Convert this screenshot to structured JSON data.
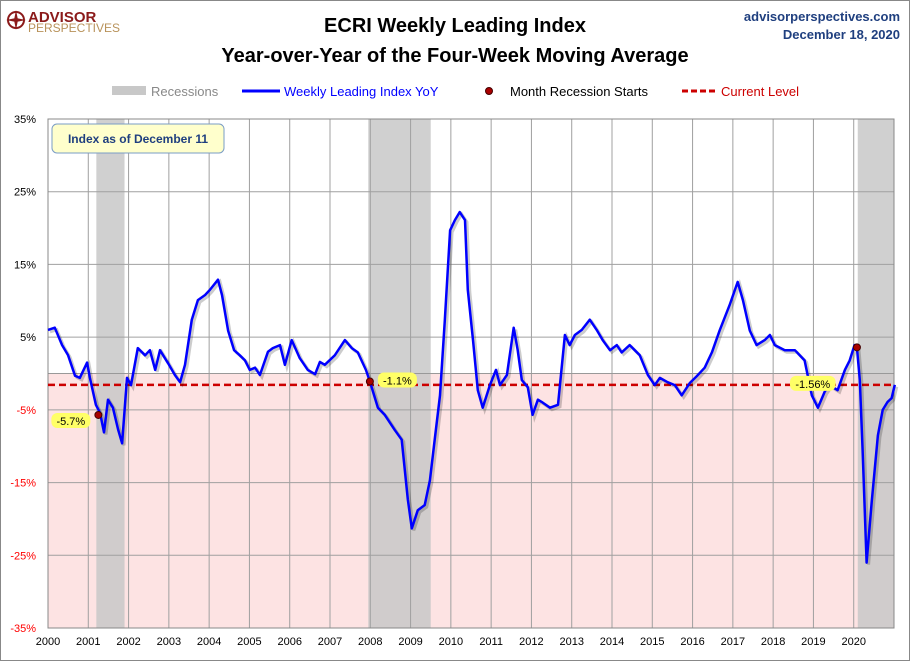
{
  "header": {
    "logo_text_1": "ADVISOR",
    "logo_text_2": "PERSPECTIVES",
    "title_line1": "ECRI Weekly Leading Index",
    "title_line2": "Year-over-Year of the Four-Week Moving Average",
    "site": "advisorperspectives.com",
    "date": "December 18, 2020"
  },
  "chart_data": {
    "type": "line",
    "title": "ECRI Weekly Leading Index Year-over-Year of the Four-Week Moving Average",
    "xlabel": "",
    "ylabel": "",
    "xlim": [
      2000,
      2021
    ],
    "ylim": [
      -35,
      35
    ],
    "grid": true,
    "legend_position": "top",
    "x_ticks": [
      "2000",
      "2001",
      "2002",
      "2003",
      "2004",
      "2005",
      "2006",
      "2007",
      "2008",
      "2009",
      "2010",
      "2011",
      "2012",
      "2013",
      "2014",
      "2015",
      "2016",
      "2017",
      "2018",
      "2019",
      "2020"
    ],
    "y_ticks": [
      35,
      25,
      15,
      5,
      -5,
      -15,
      -25,
      -35
    ],
    "y_tick_labels": [
      "35%",
      "25%",
      "15%",
      "5%",
      "-5%",
      "-15%",
      "-25%",
      "-35%"
    ],
    "legend": [
      "Recessions",
      "Weekly Leading Index YoY",
      "Month Recession Starts",
      "Current Level"
    ],
    "annotation_box": "Index as of December 11",
    "colors": {
      "series": "#0000ff",
      "recession": "#c8c8c8",
      "current": "#cc0000",
      "marker": "#aa0000",
      "negative_zone": "#fde3e3",
      "label_bg": "#ffff66",
      "box_bg": "#ffffcc"
    },
    "current_level": -1.56,
    "recessions": [
      [
        2001.2,
        2001.9
      ],
      [
        2007.95,
        2009.5
      ],
      [
        2020.1,
        2021.02
      ]
    ],
    "recession_starts": [
      {
        "x": 2001.25,
        "y": -5.7,
        "label": "-5.7%"
      },
      {
        "x": 2007.99,
        "y": -1.1,
        "label": "-1.1%"
      },
      {
        "x": 2020.08,
        "y": 3.6,
        "label": ""
      }
    ],
    "current_label": "-1.56%",
    "series": [
      {
        "name": "Weekly Leading Index YoY",
        "points": [
          [
            2000.0,
            6.0
          ],
          [
            2000.17,
            6.3
          ],
          [
            2000.35,
            3.9
          ],
          [
            2000.5,
            2.5
          ],
          [
            2000.67,
            -0.3
          ],
          [
            2000.79,
            -0.6
          ],
          [
            2000.97,
            1.5
          ],
          [
            2001.04,
            -0.6
          ],
          [
            2001.19,
            -4.3
          ],
          [
            2001.29,
            -5.4
          ],
          [
            2001.39,
            -8.1
          ],
          [
            2001.49,
            -3.6
          ],
          [
            2001.61,
            -4.7
          ],
          [
            2001.74,
            -7.7
          ],
          [
            2001.84,
            -9.6
          ],
          [
            2001.96,
            -0.6
          ],
          [
            2002.06,
            -1.6
          ],
          [
            2002.23,
            3.5
          ],
          [
            2002.41,
            2.5
          ],
          [
            2002.53,
            3.2
          ],
          [
            2002.66,
            0.5
          ],
          [
            2002.78,
            3.2
          ],
          [
            2002.98,
            1.4
          ],
          [
            2003.15,
            -0.2
          ],
          [
            2003.28,
            -1.2
          ],
          [
            2003.4,
            1.2
          ],
          [
            2003.57,
            7.4
          ],
          [
            2003.72,
            10.1
          ],
          [
            2003.9,
            10.8
          ],
          [
            2004.02,
            11.5
          ],
          [
            2004.22,
            12.9
          ],
          [
            2004.32,
            10.8
          ],
          [
            2004.47,
            5.9
          ],
          [
            2004.62,
            3.2
          ],
          [
            2004.76,
            2.5
          ],
          [
            2004.89,
            1.8
          ],
          [
            2005.01,
            0.5
          ],
          [
            2005.14,
            0.8
          ],
          [
            2005.26,
            -0.2
          ],
          [
            2005.46,
            3.0
          ],
          [
            2005.58,
            3.5
          ],
          [
            2005.76,
            3.9
          ],
          [
            2005.88,
            1.2
          ],
          [
            2006.05,
            4.6
          ],
          [
            2006.25,
            2.1
          ],
          [
            2006.45,
            0.5
          ],
          [
            2006.63,
            -0.1
          ],
          [
            2006.75,
            1.6
          ],
          [
            2006.87,
            1.2
          ],
          [
            2007.12,
            2.5
          ],
          [
            2007.37,
            4.6
          ],
          [
            2007.54,
            3.5
          ],
          [
            2007.69,
            2.9
          ],
          [
            2007.89,
            0.5
          ],
          [
            2007.99,
            -1.1
          ],
          [
            2008.19,
            -4.7
          ],
          [
            2008.36,
            -5.7
          ],
          [
            2008.61,
            -7.8
          ],
          [
            2008.78,
            -9.1
          ],
          [
            2008.93,
            -17.3
          ],
          [
            2009.03,
            -21.3
          ],
          [
            2009.18,
            -18.8
          ],
          [
            2009.35,
            -18.1
          ],
          [
            2009.48,
            -14.7
          ],
          [
            2009.6,
            -9.1
          ],
          [
            2009.73,
            -3.0
          ],
          [
            2009.85,
            7.3
          ],
          [
            2009.98,
            19.7
          ],
          [
            2010.1,
            21.1
          ],
          [
            2010.22,
            22.2
          ],
          [
            2010.35,
            21.1
          ],
          [
            2010.42,
            11.5
          ],
          [
            2010.55,
            4.6
          ],
          [
            2010.67,
            -2.3
          ],
          [
            2010.79,
            -4.7
          ],
          [
            2010.97,
            -1.6
          ],
          [
            2011.12,
            0.5
          ],
          [
            2011.22,
            -1.6
          ],
          [
            2011.39,
            -0.2
          ],
          [
            2011.56,
            6.3
          ],
          [
            2011.66,
            3.2
          ],
          [
            2011.76,
            -0.9
          ],
          [
            2011.91,
            -1.9
          ],
          [
            2012.03,
            -5.7
          ],
          [
            2012.16,
            -3.6
          ],
          [
            2012.28,
            -4.0
          ],
          [
            2012.46,
            -4.7
          ],
          [
            2012.66,
            -4.3
          ],
          [
            2012.83,
            5.3
          ],
          [
            2012.95,
            3.9
          ],
          [
            2013.08,
            5.3
          ],
          [
            2013.25,
            6.0
          ],
          [
            2013.45,
            7.4
          ],
          [
            2013.62,
            6.0
          ],
          [
            2013.77,
            4.6
          ],
          [
            2013.95,
            3.2
          ],
          [
            2014.12,
            3.9
          ],
          [
            2014.24,
            2.9
          ],
          [
            2014.44,
            3.9
          ],
          [
            2014.69,
            2.5
          ],
          [
            2014.89,
            -0.2
          ],
          [
            2015.06,
            -1.6
          ],
          [
            2015.19,
            -0.6
          ],
          [
            2015.38,
            -1.2
          ],
          [
            2015.56,
            -1.6
          ],
          [
            2015.73,
            -3.0
          ],
          [
            2015.93,
            -1.3
          ],
          [
            2016.1,
            -0.4
          ],
          [
            2016.3,
            0.8
          ],
          [
            2016.48,
            2.9
          ],
          [
            2016.67,
            5.9
          ],
          [
            2016.92,
            9.4
          ],
          [
            2017.12,
            12.6
          ],
          [
            2017.25,
            10.1
          ],
          [
            2017.42,
            5.9
          ],
          [
            2017.59,
            3.9
          ],
          [
            2017.79,
            4.6
          ],
          [
            2017.92,
            5.3
          ],
          [
            2018.04,
            3.9
          ],
          [
            2018.29,
            3.2
          ],
          [
            2018.54,
            3.2
          ],
          [
            2018.78,
            1.8
          ],
          [
            2018.96,
            -3.0
          ],
          [
            2019.11,
            -4.7
          ],
          [
            2019.28,
            -2.5
          ],
          [
            2019.4,
            -1.6
          ],
          [
            2019.6,
            -2.3
          ],
          [
            2019.78,
            0.5
          ],
          [
            2019.9,
            1.8
          ],
          [
            2020.02,
            3.9
          ],
          [
            2020.08,
            3.6
          ],
          [
            2020.15,
            -0.9
          ],
          [
            2020.22,
            -10.5
          ],
          [
            2020.32,
            -26.0
          ],
          [
            2020.45,
            -17.5
          ],
          [
            2020.6,
            -8.5
          ],
          [
            2020.72,
            -5.0
          ],
          [
            2020.84,
            -3.9
          ],
          [
            2020.94,
            -3.4
          ],
          [
            2021.02,
            -1.56
          ]
        ]
      }
    ]
  }
}
